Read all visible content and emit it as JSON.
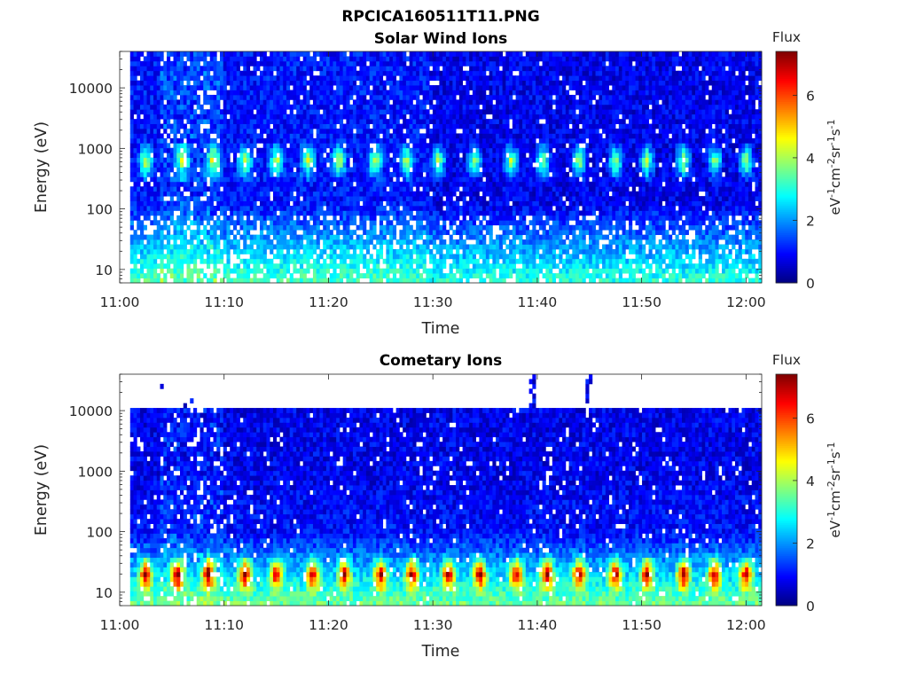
{
  "figure": {
    "filename_title": "RPCICA160511T11.PNG",
    "colorbar": {
      "label": "Flux",
      "ticks": [
        "0",
        "2",
        "4",
        "6"
      ],
      "tick_values": [
        0,
        2,
        4,
        6
      ],
      "range": [
        0,
        7.4
      ],
      "unit_parts": [
        "eV",
        "-1",
        "cm",
        "-2",
        "sr",
        "-1",
        "s",
        "-1"
      ],
      "colormap": "jet"
    }
  },
  "chart_data": [
    {
      "type": "heatmap",
      "title": "Solar Wind Ions",
      "xlabel": "Time",
      "ylabel": "Energy (eV)",
      "x_ticks": [
        "11:00",
        "11:10",
        "11:20",
        "11:30",
        "11:40",
        "11:50",
        "12:00"
      ],
      "x_tick_minutes": [
        0,
        10,
        20,
        30,
        40,
        50,
        60
      ],
      "xlim_minutes": [
        0,
        61.5
      ],
      "y_ticks": [
        "10",
        "100",
        "1000",
        "10000"
      ],
      "y_tick_values": [
        10,
        100,
        1000,
        10000
      ],
      "ylim": [
        6,
        40000
      ],
      "y_scale": "log",
      "features": {
        "background_flux": [
          0.5,
          1.5
        ],
        "noisy_interval_minutes": [
          4,
          10
        ],
        "change_interval_minute": 29.5,
        "peak_energy_eV": 620,
        "peak_times_minutes": [
          2.5,
          6,
          9,
          12,
          15,
          18,
          21,
          24.5,
          27.5,
          30.5,
          34,
          37.5,
          40.5,
          44,
          47.5,
          50.5,
          54,
          57,
          60
        ],
        "peak_flux": 3.6,
        "low_energy_flux": 2.3
      }
    },
    {
      "type": "heatmap",
      "title": "Cometary Ions",
      "xlabel": "Time",
      "ylabel": "Energy (eV)",
      "x_ticks": [
        "11:00",
        "11:10",
        "11:20",
        "11:30",
        "11:40",
        "11:50",
        "12:00"
      ],
      "x_tick_minutes": [
        0,
        10,
        20,
        30,
        40,
        50,
        60
      ],
      "xlim_minutes": [
        0,
        61.5
      ],
      "y_ticks": [
        "10",
        "100",
        "1000",
        "10000"
      ],
      "y_tick_values": [
        10,
        100,
        1000,
        10000
      ],
      "ylim": [
        6,
        40000
      ],
      "y_scale": "log",
      "features": {
        "max_energy_eV": 11000,
        "noisy_interval_minutes": [
          4,
          10
        ],
        "peak_energy_eV": 20,
        "peak_times_minutes": [
          2.5,
          5.5,
          8.5,
          12,
          15,
          18.5,
          21.5,
          25,
          28,
          31.5,
          34.5,
          38,
          41,
          44,
          47.5,
          50.5,
          54,
          57,
          60
        ],
        "peak_flux": 5.2,
        "sparse_high_energy_minutes": [
          39.5,
          45
        ],
        "low_energy_flux": 2.4
      }
    }
  ]
}
